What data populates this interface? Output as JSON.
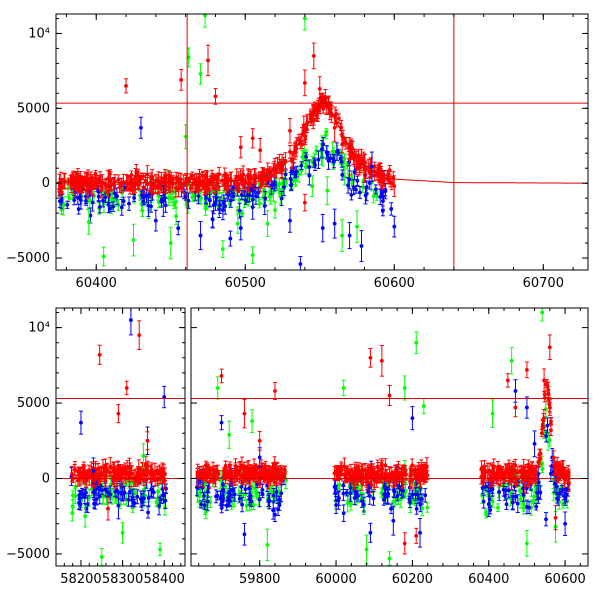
{
  "chart_data": [
    {
      "type": "scatter",
      "panel": "top",
      "xlim": [
        60373,
        60730
      ],
      "ylim": [
        -5800,
        11300
      ],
      "x_ticks": [
        60400,
        60500,
        60600,
        60700
      ],
      "x_tick_labels": [
        "60400",
        "60500",
        "60600",
        "60700"
      ],
      "y_ticks": [
        -5000,
        0,
        5000,
        10000
      ],
      "y_tick_labels": [
        "−5000",
        "0",
        "5000",
        "10⁴"
      ],
      "grid": false,
      "legend": "none",
      "reference_lines": {
        "horizontal_y": 5350,
        "vertical_x": [
          60461,
          60640
        ],
        "color": "#e00000"
      },
      "model_curve": {
        "color": "#e00000",
        "points": [
          [
            60373,
            0
          ],
          [
            60480,
            50
          ],
          [
            60510,
            300
          ],
          [
            60530,
            1500
          ],
          [
            60545,
            4500
          ],
          [
            60552,
            5600
          ],
          [
            60560,
            4300
          ],
          [
            60575,
            1500
          ],
          [
            60595,
            300
          ],
          [
            60640,
            40
          ],
          [
            60730,
            0
          ]
        ]
      },
      "series": [
        {
          "color": "#ff0000",
          "points": [
            [
              60420,
              6500
            ],
            [
              60457,
              6900
            ],
            [
              60475,
              8200
            ],
            [
              60480,
              5800
            ],
            [
              60497,
              2400
            ],
            [
              60505,
              3000
            ],
            [
              60510,
              2200
            ],
            [
              60530,
              3500
            ],
            [
              60540,
              6700
            ],
            [
              60546,
              8500
            ],
            [
              60550,
              6300
            ],
            [
              60556,
              5200
            ],
            [
              60560,
              3700
            ],
            [
              60565,
              2600
            ],
            [
              60540,
              -1300
            ],
            [
              60570,
              1600
            ],
            [
              60580,
              1000
            ],
            [
              60590,
              500
            ],
            [
              60600,
              -200
            ]
          ],
          "band": [
            60375,
            60600
          ]
        },
        {
          "color": "#0000ff",
          "points": [
            [
              60430,
              3700
            ],
            [
              60435,
              -1500
            ],
            [
              60440,
              -2500
            ],
            [
              60445,
              -1200
            ],
            [
              60455,
              -3000
            ],
            [
              60470,
              -3500
            ],
            [
              60478,
              -2400
            ],
            [
              60485,
              -1800
            ],
            [
              60490,
              -3700
            ],
            [
              60497,
              -3000
            ],
            [
              60505,
              -1600
            ],
            [
              60530,
              -2500
            ],
            [
              60537,
              -5400
            ],
            [
              60543,
              500
            ],
            [
              60552,
              -3000
            ],
            [
              60560,
              -2700
            ],
            [
              60570,
              -3500
            ],
            [
              60578,
              -4200
            ],
            [
              60585,
              1100
            ],
            [
              60600,
              -2900
            ]
          ],
          "band": [
            60375,
            60600
          ]
        },
        {
          "color": "#00ff00",
          "points": [
            [
              60378,
              -1500
            ],
            [
              60395,
              -2600
            ],
            [
              60405,
              -4900
            ],
            [
              60425,
              -3800
            ],
            [
              60450,
              -4000
            ],
            [
              60460,
              3100
            ],
            [
              60462,
              8400
            ],
            [
              60470,
              7300
            ],
            [
              60473,
              11200
            ],
            [
              60485,
              -4400
            ],
            [
              60495,
              -2700
            ],
            [
              60505,
              -4800
            ],
            [
              60515,
              -2700
            ],
            [
              60520,
              -1800
            ],
            [
              60540,
              11000
            ],
            [
              60545,
              -200
            ],
            [
              60555,
              -500
            ],
            [
              60565,
              -3500
            ],
            [
              60575,
              -2900
            ]
          ],
          "band": [
            60375,
            60590
          ]
        }
      ]
    },
    {
      "type": "scatter",
      "panel": "bottom",
      "segments": [
        {
          "xlim": [
            58140,
            58450
          ],
          "x_ticks": [
            58200,
            58300,
            58400
          ],
          "x_tick_labels": [
            "58200",
            "58300",
            "58400"
          ],
          "data_range": [
            58175,
            58405
          ]
        },
        {
          "xlim": [
            59620,
            60660
          ],
          "x_ticks": [
            59800,
            60000,
            60200,
            60400,
            60600
          ],
          "x_tick_labels": [
            "59800",
            "60000",
            "60200",
            "60400",
            "60600"
          ],
          "data_ranges": [
            [
              59635,
              59870
            ],
            [
              59995,
              60240
            ],
            [
              60380,
              60610
            ]
          ]
        }
      ],
      "ylim": [
        -5800,
        11300
      ],
      "y_ticks": [
        -5000,
        0,
        5000,
        10000
      ],
      "y_tick_labels": [
        "−5000",
        "0",
        "5000",
        "10⁴"
      ],
      "grid": false,
      "legend": "none",
      "reference_lines": {
        "horizontal_y": [
          5300,
          0
        ],
        "color": "#e00000"
      },
      "series": [
        {
          "color": "#ff0000",
          "points": [
            [
              58245,
              8200
            ],
            [
              58265,
              -2000
            ],
            [
              58290,
              4300
            ],
            [
              58310,
              6000
            ],
            [
              58340,
              9500
            ],
            [
              58360,
              2500
            ],
            [
              59700,
              6800
            ],
            [
              59760,
              4300
            ],
            [
              59800,
              2500
            ],
            [
              59840,
              5800
            ],
            [
              60090,
              8000
            ],
            [
              60120,
              7800
            ],
            [
              60140,
              5500
            ],
            [
              60180,
              -4300
            ],
            [
              60210,
              -3800
            ],
            [
              60450,
              6500
            ],
            [
              60470,
              4700
            ],
            [
              60500,
              7200
            ],
            [
              60545,
              6500
            ],
            [
              60560,
              8700
            ],
            [
              60575,
              -2600
            ]
          ]
        },
        {
          "color": "#0000ff",
          "points": [
            [
              58200,
              3700
            ],
            [
              58230,
              500
            ],
            [
              58290,
              -1800
            ],
            [
              58320,
              10500
            ],
            [
              58360,
              2500
            ],
            [
              58400,
              5400
            ],
            [
              59700,
              3700
            ],
            [
              59760,
              -3700
            ],
            [
              59800,
              1400
            ],
            [
              59840,
              -2400
            ],
            [
              60020,
              -2300
            ],
            [
              60090,
              -3600
            ],
            [
              60150,
              -2800
            ],
            [
              60200,
              4000
            ],
            [
              60220,
              -3600
            ],
            [
              60400,
              -1700
            ],
            [
              60470,
              5800
            ],
            [
              60500,
              4700
            ],
            [
              60520,
              2300
            ],
            [
              60550,
              -2700
            ],
            [
              60600,
              -3000
            ]
          ]
        },
        {
          "color": "#00ff00",
          "points": [
            [
              58210,
              -2500
            ],
            [
              58250,
              -5200
            ],
            [
              58300,
              -3600
            ],
            [
              58350,
              1500
            ],
            [
              58390,
              -4700
            ],
            [
              59690,
              6000
            ],
            [
              59720,
              2900
            ],
            [
              59780,
              3800
            ],
            [
              59820,
              -4400
            ],
            [
              60020,
              6000
            ],
            [
              60080,
              -4700
            ],
            [
              60140,
              -5300
            ],
            [
              60180,
              6000
            ],
            [
              60210,
              9000
            ],
            [
              60230,
              4800
            ],
            [
              60410,
              4300
            ],
            [
              60460,
              7800
            ],
            [
              60500,
              -4300
            ],
            [
              60540,
              11000
            ],
            [
              60575,
              -3200
            ]
          ]
        }
      ]
    }
  ]
}
